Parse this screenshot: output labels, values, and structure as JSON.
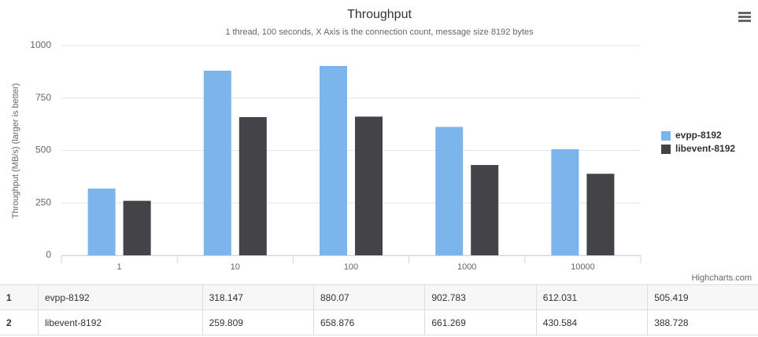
{
  "chart_data": {
    "type": "bar",
    "title": "Throughput",
    "subtitle": "1 thread, 100 seconds, X Axis is the connection count, message size 8192 bytes",
    "y_label": "Throughput (MB/s) (larger is better)",
    "categories": [
      "1",
      "10",
      "100",
      "1000",
      "10000"
    ],
    "series": [
      {
        "name": "evpp-8192",
        "color": "#7cb5ec",
        "values": [
          318.147,
          880.07,
          902.783,
          612.031,
          505.419
        ]
      },
      {
        "name": "libevent-8192",
        "color": "#434348",
        "values": [
          259.809,
          658.876,
          661.269,
          430.584,
          388.728
        ]
      }
    ],
    "ylim": [
      0,
      1000
    ],
    "yticks": [
      0,
      250,
      500,
      750,
      1000
    ],
    "grid": true,
    "legend": "right",
    "credits": "Highcharts.com"
  },
  "table": {
    "row_numbers": [
      "1",
      "2"
    ]
  }
}
